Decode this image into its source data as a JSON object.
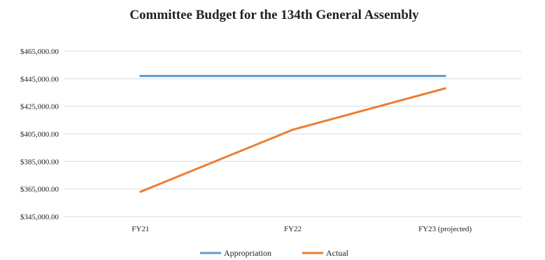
{
  "chart_data": {
    "type": "line",
    "title": "Committee Budget for the 134th General Assembly",
    "categories": [
      "FY21",
      "FY22",
      "FY23 (projected)"
    ],
    "ylim": [
      345000,
      465000
    ],
    "yticks": [
      345000,
      365000,
      385000,
      405000,
      425000,
      445000,
      465000
    ],
    "ytick_labels": [
      "$345,000.00",
      "$365,000.00",
      "$385,000.00",
      "$405,000.00",
      "$425,000.00",
      "$445,000.00",
      "$465,000.00"
    ],
    "grid": true,
    "legend_position": "bottom",
    "series": [
      {
        "name": "Appropriation",
        "color": "#5b9bd5",
        "values": [
          447000,
          447000,
          447000
        ]
      },
      {
        "name": "Actual",
        "color": "#ed7d31",
        "values": [
          363000,
          408000,
          438000
        ]
      }
    ]
  }
}
